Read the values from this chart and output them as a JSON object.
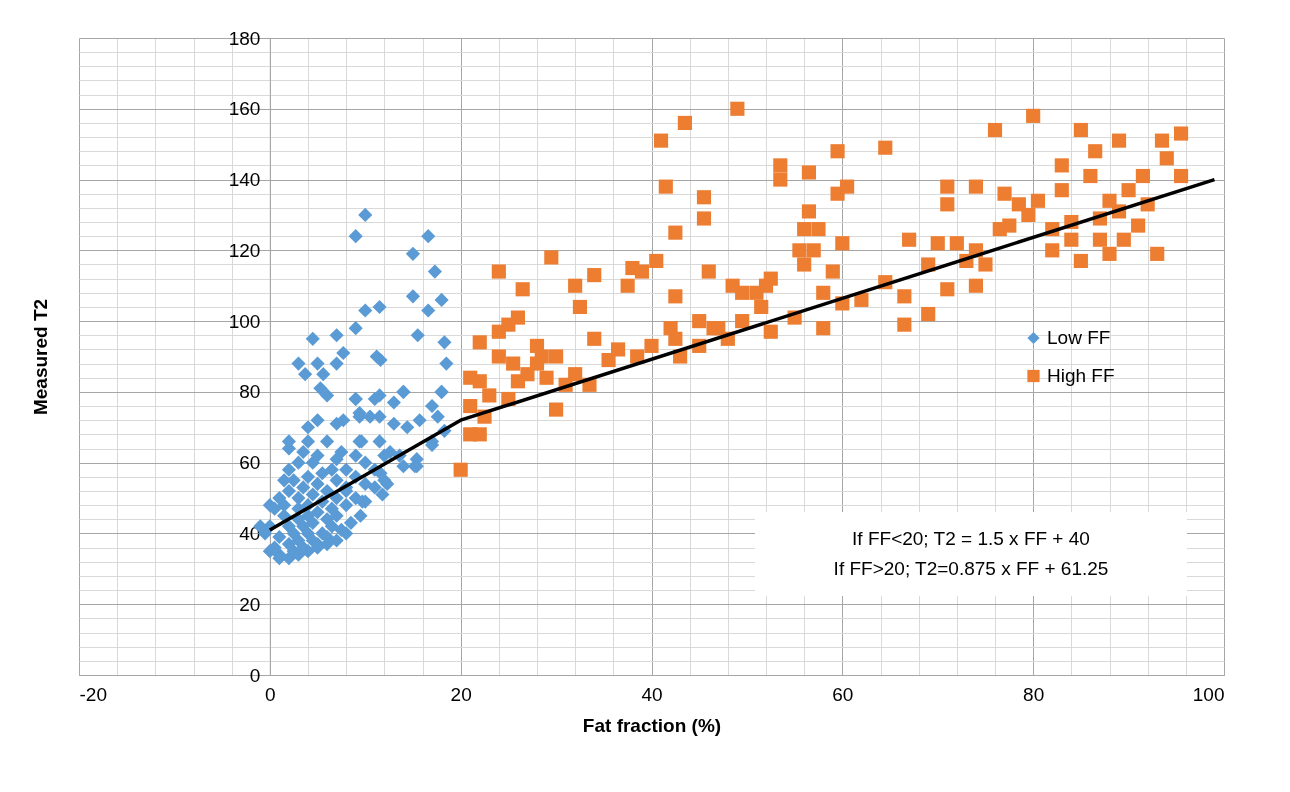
{
  "chart_data": {
    "type": "scatter",
    "xlabel": "Fat fraction (%)",
    "ylabel": "Measured T2",
    "xlim": [
      -20,
      100
    ],
    "ylim": [
      0,
      180
    ],
    "xticks": [
      -20,
      0,
      20,
      40,
      60,
      80,
      100
    ],
    "yticks": [
      0,
      20,
      40,
      60,
      80,
      100,
      120,
      140,
      160,
      180
    ],
    "grid": true,
    "legend": "right",
    "annotations": [
      "If FF<20; T2 = 1.5 x FF + 40",
      "If FF>20; T2=0.875 x FF + 61.25"
    ],
    "series": [
      {
        "name": "Low FF",
        "marker": "diamond",
        "color": "#5b9bd5",
        "x": [
          10,
          9,
          16.6,
          15,
          17.3,
          18,
          15,
          11.5,
          10,
          16.6,
          9,
          4.5,
          15.5,
          7,
          18.3,
          11.2,
          11.6,
          7.7,
          18.5,
          3,
          3.7,
          5,
          5.6,
          7,
          5.3,
          6,
          9,
          11.5,
          14,
          18,
          17,
          17.6,
          15.7,
          11.5,
          9.4,
          9.6,
          17,
          18.3,
          15.4,
          12.6,
          11.6,
          14,
          15.2,
          2,
          4,
          5,
          7,
          7.7,
          9.4,
          9.4,
          10.5,
          9,
          11,
          13,
          14,
          13,
          14.4,
          15.4,
          17,
          11.5,
          9.7,
          11.8,
          12.3,
          13.6,
          18,
          0,
          0.5,
          1,
          1,
          1.5,
          1.5,
          2,
          2,
          2,
          2,
          2.5,
          2.5,
          2.5,
          3,
          3,
          3,
          3,
          3,
          3.5,
          3.5,
          3.5,
          3.5,
          4,
          4,
          4,
          4,
          4.5,
          4.5,
          4.5,
          4.5,
          5,
          5,
          5,
          5,
          5.5,
          5.5,
          5.5,
          6,
          6,
          6,
          6,
          6.5,
          6.5,
          6.5,
          7,
          7,
          7,
          7,
          7.5,
          7.5,
          8,
          8,
          8,
          8.5,
          9,
          9,
          9,
          10,
          10,
          10,
          11,
          11,
          12,
          12,
          1,
          -0.5,
          -1,
          0,
          0.5,
          1.5,
          2,
          1,
          2,
          3,
          4,
          5,
          6,
          7,
          0,
          8,
          8,
          9.5,
          4
        ],
        "values": [
          130,
          124,
          124,
          119,
          114,
          106,
          107,
          104,
          103,
          103,
          98,
          95,
          96,
          96,
          94,
          90,
          89,
          91,
          88,
          88,
          85,
          88,
          85,
          88,
          81,
          79,
          78,
          79,
          80,
          80,
          76,
          73,
          72,
          73,
          74,
          66,
          65,
          69,
          61,
          63,
          57,
          59,
          59,
          66,
          70,
          72,
          71,
          72,
          73,
          66,
          73,
          78,
          78,
          77,
          80,
          71,
          70,
          59,
          66,
          66,
          49,
          51,
          54,
          62,
          80,
          42,
          36,
          34,
          39,
          45,
          48,
          37,
          42,
          52,
          58,
          35,
          40,
          55,
          38,
          44,
          47,
          50,
          60,
          36,
          42,
          53,
          63,
          40,
          45,
          48,
          56,
          38,
          43,
          51,
          60,
          37,
          46,
          54,
          62,
          40,
          49,
          57,
          39,
          44,
          52,
          66,
          42,
          47,
          58,
          45,
          50,
          55,
          61,
          41,
          63,
          48,
          53,
          58,
          43,
          50,
          56,
          62,
          49,
          54,
          60,
          53,
          58,
          55,
          62,
          50,
          40,
          42,
          35,
          47,
          55,
          64,
          33,
          33,
          34,
          35,
          36,
          37,
          38,
          48,
          52,
          40,
          45,
          66
        ]
      },
      {
        "name": "High FF",
        "marker": "square",
        "color": "#ed7d31",
        "x": [
          20,
          21,
          22,
          21,
          21,
          22,
          22,
          23,
          24,
          24,
          25,
          25.5,
          26,
          26.5,
          25,
          26,
          27,
          28,
          28.5,
          29.5,
          30,
          30,
          32,
          32.5,
          34,
          33.5,
          34,
          32,
          36.5,
          37.5,
          38,
          38.5,
          39,
          40.5,
          41,
          41.5,
          42,
          42.5,
          42.5,
          43.5,
          43,
          42.5,
          45,
          45.5,
          45.5,
          46,
          47,
          48,
          49,
          48.5,
          49.5,
          49.5,
          51,
          51.5,
          52,
          52.5,
          53.5,
          53.5,
          55,
          56,
          56,
          56.5,
          57,
          56.5,
          58,
          58,
          59.5,
          59.5,
          60,
          60.5,
          60,
          59,
          64.5,
          64.5,
          66.5,
          66.5,
          67,
          69,
          69,
          70,
          71,
          71,
          71,
          72,
          73,
          74,
          74,
          74,
          75,
          76,
          77,
          77.5,
          78.5,
          79.5,
          80,
          82,
          83,
          83,
          84,
          85,
          85,
          86,
          86.5,
          87,
          88,
          88,
          89,
          89.5,
          90,
          91.5,
          92,
          93,
          93.5,
          94,
          95.5,
          95.5,
          84,
          87,
          80.5,
          82,
          91,
          89,
          29,
          31,
          35.5,
          40,
          45,
          46.5,
          22.5,
          28,
          24,
          52.5,
          55.5,
          57.5,
          62,
          76.5
        ],
        "values": [
          58,
          68,
          68,
          84,
          76,
          94,
          83,
          79,
          114,
          97,
          99,
          88,
          101,
          109,
          78,
          83,
          85,
          93,
          90,
          118,
          90,
          75,
          110,
          104,
          113,
          82,
          95,
          85,
          92,
          110,
          115,
          90,
          114,
          117,
          151,
          138,
          98,
          107,
          125,
          156,
          90,
          95,
          93,
          135,
          129,
          114,
          98,
          95,
          160,
          110,
          108,
          100,
          108,
          104,
          110,
          97,
          144,
          140,
          101,
          126,
          116,
          142,
          120,
          131,
          108,
          98,
          148,
          136,
          122,
          138,
          105,
          114,
          149,
          111,
          99,
          107,
          123,
          116,
          102,
          122,
          138,
          133,
          109,
          122,
          117,
          120,
          138,
          110,
          116,
          154,
          136,
          127,
          133,
          130,
          158,
          120,
          144,
          137,
          128,
          154,
          117,
          141,
          148,
          129,
          119,
          134,
          151,
          123,
          137,
          141,
          133,
          119,
          151,
          146,
          153,
          141,
          123,
          123,
          134,
          126,
          127,
          131,
          84,
          82,
          89,
          93,
          100,
          98,
          73,
          88,
          90,
          112,
          120,
          126,
          106,
          126
        ]
      },
      {
        "type": "line",
        "color": "#000000",
        "x": [
          0,
          20,
          99
        ],
        "values": [
          41,
          72,
          140
        ]
      }
    ]
  }
}
